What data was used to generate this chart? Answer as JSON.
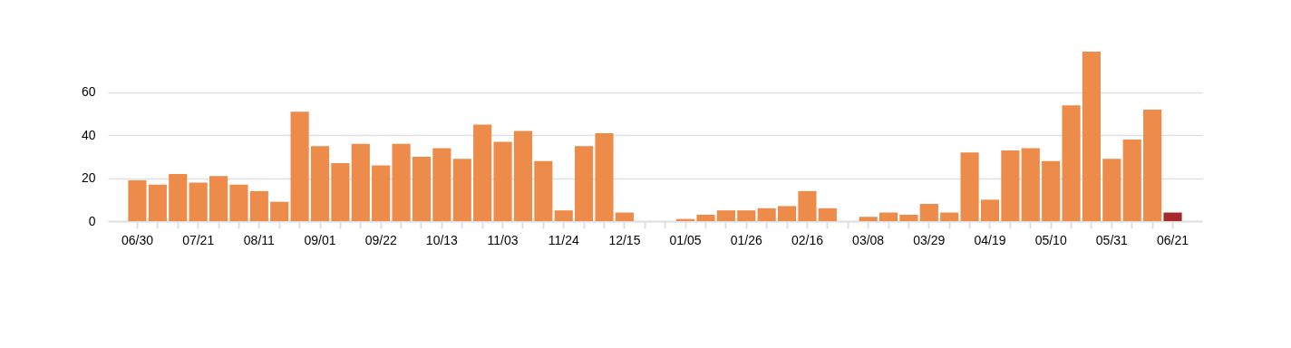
{
  "chart_data": {
    "type": "bar",
    "categories": [
      "06/30",
      null,
      null,
      "07/21",
      null,
      null,
      "08/11",
      null,
      null,
      "09/01",
      null,
      null,
      "09/22",
      null,
      null,
      "10/13",
      null,
      null,
      "11/03",
      null,
      null,
      "11/24",
      null,
      null,
      "12/15",
      null,
      null,
      "01/05",
      null,
      null,
      "01/26",
      null,
      null,
      "02/16",
      null,
      null,
      "03/08",
      null,
      null,
      "03/29",
      null,
      null,
      "04/19",
      null,
      null,
      "05/10",
      null,
      null,
      "05/31",
      null,
      null,
      "06/21"
    ],
    "values": [
      19,
      17,
      22,
      18,
      21,
      17,
      14,
      9,
      51,
      35,
      27,
      36,
      26,
      36,
      30,
      34,
      29,
      45,
      37,
      42,
      28,
      5,
      35,
      41,
      4,
      0,
      0,
      1,
      3,
      5,
      5,
      6,
      7,
      14,
      6,
      0,
      2,
      4,
      3,
      8,
      4,
      32,
      10,
      33,
      34,
      28,
      54,
      79,
      29,
      38,
      52,
      4
    ],
    "colors": [
      "#ec8b4a",
      "#ec8b4a",
      "#ec8b4a",
      "#ec8b4a",
      "#ec8b4a",
      "#ec8b4a",
      "#ec8b4a",
      "#ec8b4a",
      "#ec8b4a",
      "#ec8b4a",
      "#ec8b4a",
      "#ec8b4a",
      "#ec8b4a",
      "#ec8b4a",
      "#ec8b4a",
      "#ec8b4a",
      "#ec8b4a",
      "#ec8b4a",
      "#ec8b4a",
      "#ec8b4a",
      "#ec8b4a",
      "#ec8b4a",
      "#ec8b4a",
      "#ec8b4a",
      "#ec8b4a",
      "#ec8b4a",
      "#ec8b4a",
      "#ec8b4a",
      "#ec8b4a",
      "#ec8b4a",
      "#ec8b4a",
      "#ec8b4a",
      "#ec8b4a",
      "#ec8b4a",
      "#ec8b4a",
      "#ec8b4a",
      "#ec8b4a",
      "#ec8b4a",
      "#ec8b4a",
      "#ec8b4a",
      "#ec8b4a",
      "#ec8b4a",
      "#ec8b4a",
      "#ec8b4a",
      "#ec8b4a",
      "#ec8b4a",
      "#ec8b4a",
      "#ec8b4a",
      "#ec8b4a",
      "#ec8b4a",
      "#ec8b4a",
      "#a52a2e"
    ],
    "ylim": [
      0,
      79
    ],
    "yticks": [
      0,
      20,
      40,
      60
    ],
    "grid": "y"
  }
}
